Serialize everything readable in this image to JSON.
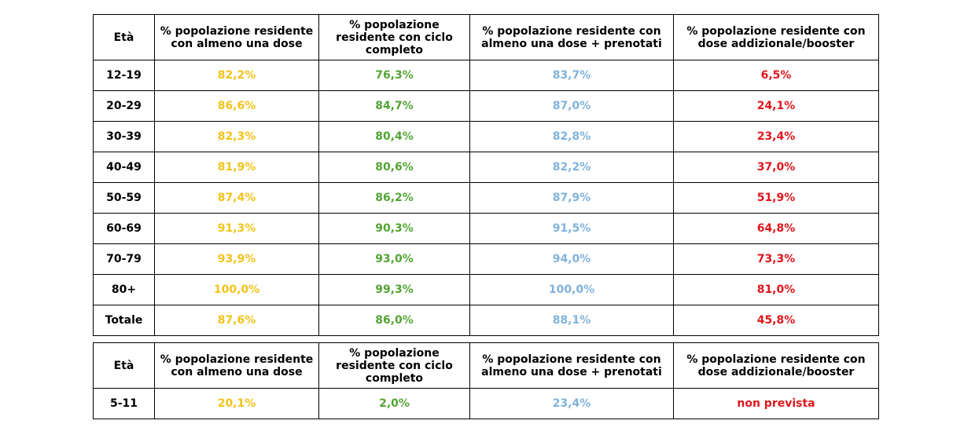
{
  "headers": {
    "age": "Età",
    "col1": "% popolazione residente con almeno una dose",
    "col2": "% popolazione residente con ciclo completo",
    "col3": "% popolazione residente con almeno una dose + prenotati",
    "col4": "% popolazione residente con dose addizionale/booster"
  },
  "colors": {
    "col1": "#f2c31a",
    "col2": "#54a434",
    "col3": "#80b3dc",
    "col4": "#e0161c"
  },
  "main_table": {
    "rows": [
      {
        "age": "12-19",
        "c1": "82,2%",
        "c2": "76,3%",
        "c3": "83,7%",
        "c4": "6,5%"
      },
      {
        "age": "20-29",
        "c1": "86,6%",
        "c2": "84,7%",
        "c3": "87,0%",
        "c4": "24,1%"
      },
      {
        "age": "30-39",
        "c1": "82,3%",
        "c2": "80,4%",
        "c3": "82,8%",
        "c4": "23,4%"
      },
      {
        "age": "40-49",
        "c1": "81,9%",
        "c2": "80,6%",
        "c3": "82,2%",
        "c4": "37,0%"
      },
      {
        "age": "50-59",
        "c1": "87,4%",
        "c2": "86,2%",
        "c3": "87,9%",
        "c4": "51,9%"
      },
      {
        "age": "60-69",
        "c1": "91,3%",
        "c2": "90,3%",
        "c3": "91,5%",
        "c4": "64,8%"
      },
      {
        "age": "70-79",
        "c1": "93,9%",
        "c2": "93,0%",
        "c3": "94,0%",
        "c4": "73,3%"
      },
      {
        "age": "80+",
        "c1": "100,0%",
        "c2": "99,3%",
        "c3": "100,0%",
        "c4": "81,0%"
      },
      {
        "age": "Totale",
        "c1": "87,6%",
        "c2": "86,0%",
        "c3": "88,1%",
        "c4": "45,8%"
      }
    ]
  },
  "kids_table": {
    "rows": [
      {
        "age": "5-11",
        "c1": "20,1%",
        "c2": "2,0%",
        "c3": "23,4%",
        "c4": "non prevista"
      }
    ]
  }
}
